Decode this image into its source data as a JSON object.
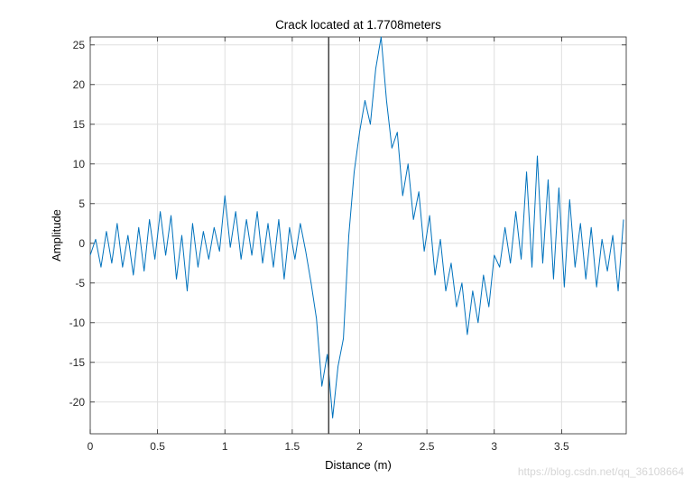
{
  "chart_data": {
    "type": "line",
    "title": "Crack located at 1.7708meters",
    "xlabel": "Distance (m)",
    "ylabel": "Amplitude",
    "xlim": [
      0,
      3.98
    ],
    "ylim": [
      -24,
      26
    ],
    "xticks": [
      0,
      0.5,
      1,
      1.5,
      2,
      2.5,
      3,
      3.5
    ],
    "xtick_labels": [
      "0",
      "0.5",
      "1",
      "1.5",
      "2",
      "2.5",
      "3",
      "3.5"
    ],
    "yticks": [
      -20,
      -15,
      -10,
      -5,
      0,
      5,
      10,
      15,
      20,
      25
    ],
    "ytick_labels": [
      "-20",
      "-15",
      "-10",
      "-5",
      "0",
      "5",
      "10",
      "15",
      "20",
      "25"
    ],
    "grid": true,
    "box": true,
    "vertical_line": {
      "x": 1.7708,
      "color": "#404040"
    },
    "series": [
      {
        "color": "#0072BD",
        "x": [
          0,
          0.04,
          0.08,
          0.12,
          0.16,
          0.2,
          0.24,
          0.28,
          0.32,
          0.36,
          0.4,
          0.44,
          0.48,
          0.52,
          0.56,
          0.6,
          0.64,
          0.68,
          0.72,
          0.76,
          0.8,
          0.84,
          0.88,
          0.92,
          0.96,
          1.0,
          1.04,
          1.08,
          1.12,
          1.16,
          1.2,
          1.24,
          1.28,
          1.32,
          1.36,
          1.4,
          1.44,
          1.48,
          1.52,
          1.56,
          1.6,
          1.64,
          1.68,
          1.72,
          1.76,
          1.8,
          1.84,
          1.88,
          1.92,
          1.96,
          2.0,
          2.04,
          2.08,
          2.12,
          2.16,
          2.2,
          2.24,
          2.28,
          2.32,
          2.36,
          2.4,
          2.44,
          2.48,
          2.52,
          2.56,
          2.6,
          2.64,
          2.68,
          2.72,
          2.76,
          2.8,
          2.84,
          2.88,
          2.92,
          2.96,
          3.0,
          3.04,
          3.08,
          3.12,
          3.16,
          3.2,
          3.24,
          3.28,
          3.32,
          3.36,
          3.4,
          3.44,
          3.48,
          3.52,
          3.56,
          3.6,
          3.64,
          3.68,
          3.72,
          3.76,
          3.8,
          3.84,
          3.88,
          3.92,
          3.96
        ],
        "y": [
          -1.5,
          0.5,
          -3.0,
          1.5,
          -2.5,
          2.5,
          -3.0,
          1.0,
          -4.0,
          2.0,
          -3.5,
          3.0,
          -2.0,
          4.0,
          -1.5,
          3.5,
          -4.5,
          1.0,
          -6.0,
          2.5,
          -3.0,
          1.5,
          -2.0,
          2.0,
          -1.0,
          6.0,
          -0.5,
          4.0,
          -2.0,
          3.0,
          -1.5,
          4.0,
          -2.5,
          2.5,
          -3.0,
          3.0,
          -4.5,
          2.0,
          -2.0,
          2.5,
          -1.0,
          -5.0,
          -9.5,
          -18.0,
          -14.0,
          -22.0,
          -15.5,
          -12.0,
          1.0,
          9.0,
          14.0,
          18.0,
          15.0,
          22.0,
          26.0,
          18.0,
          12.0,
          14.0,
          6.0,
          10.0,
          3.0,
          6.5,
          -1.0,
          3.5,
          -4.0,
          0.5,
          -6.0,
          -2.5,
          -8.0,
          -5.0,
          -11.5,
          -6.0,
          -10.0,
          -4.0,
          -8.0,
          -1.5,
          -3.0,
          2.0,
          -2.5,
          4.0,
          -2.0,
          9.0,
          -3.0,
          11.0,
          -2.5,
          8.0,
          -4.5,
          7.0,
          -5.5,
          5.5,
          -3.0,
          2.5,
          -4.5,
          2.0,
          -5.5,
          0.5,
          -3.5,
          1.0,
          -6.0,
          3.0
        ]
      }
    ]
  },
  "watermark": "https://blog.csdn.net/qq_36108664"
}
